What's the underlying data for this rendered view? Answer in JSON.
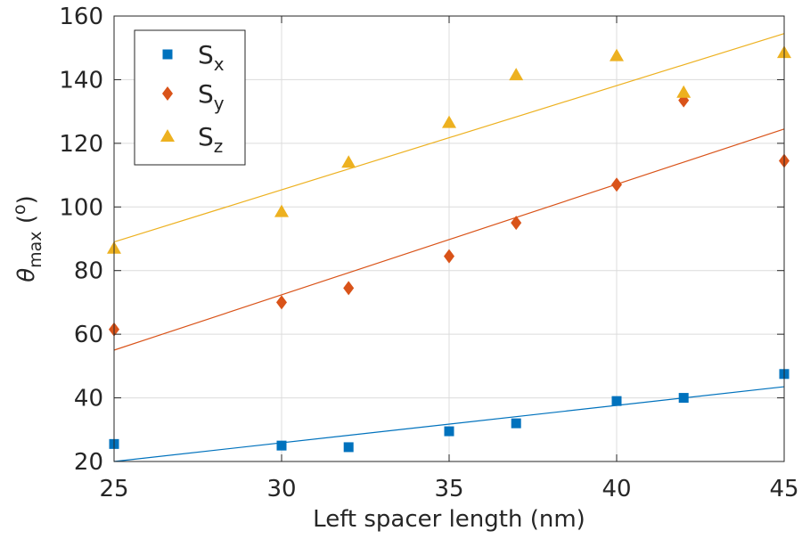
{
  "chart_data": {
    "type": "scatter",
    "title": "",
    "xlabel": "Left spacer length (nm)",
    "ylabel": {
      "symbol": "θ",
      "subscript": "max",
      "unit_open": " (",
      "unit_sup": "o",
      "unit_close": ")"
    },
    "xlim": [
      25,
      45
    ],
    "ylim": [
      20,
      160
    ],
    "xticks": [
      25,
      30,
      35,
      40,
      45
    ],
    "yticks": [
      20,
      40,
      60,
      80,
      100,
      120,
      140,
      160
    ],
    "xtick_labels": [
      "25",
      "30",
      "35",
      "40",
      "45"
    ],
    "ytick_labels": [
      "20",
      "40",
      "60",
      "80",
      "100",
      "120",
      "140",
      "160"
    ],
    "grid": true,
    "legend_position": "top-left",
    "x": [
      25,
      30,
      32,
      35,
      37,
      40,
      42,
      45
    ],
    "series": [
      {
        "name": "Sx",
        "label_main": "S",
        "label_sub": "x",
        "marker": "square",
        "color": "#0072BD",
        "values": [
          25.5,
          25,
          24.5,
          29.5,
          32,
          39,
          40,
          47.5
        ],
        "fit": [
          20,
          43.5
        ]
      },
      {
        "name": "Sy",
        "label_main": "S",
        "label_sub": "y",
        "marker": "diamond",
        "color": "#D95319",
        "values": [
          61.5,
          70,
          74.5,
          84.5,
          95,
          107,
          133.5,
          114.5
        ],
        "fit": [
          55,
          124.5
        ]
      },
      {
        "name": "Sz",
        "label_main": "S",
        "label_sub": "z",
        "marker": "triangle",
        "color": "#EDB120",
        "values": [
          87,
          98.5,
          114,
          126.5,
          141.5,
          147.5,
          136,
          148.5
        ],
        "fit": [
          89,
          154.5
        ]
      }
    ]
  }
}
